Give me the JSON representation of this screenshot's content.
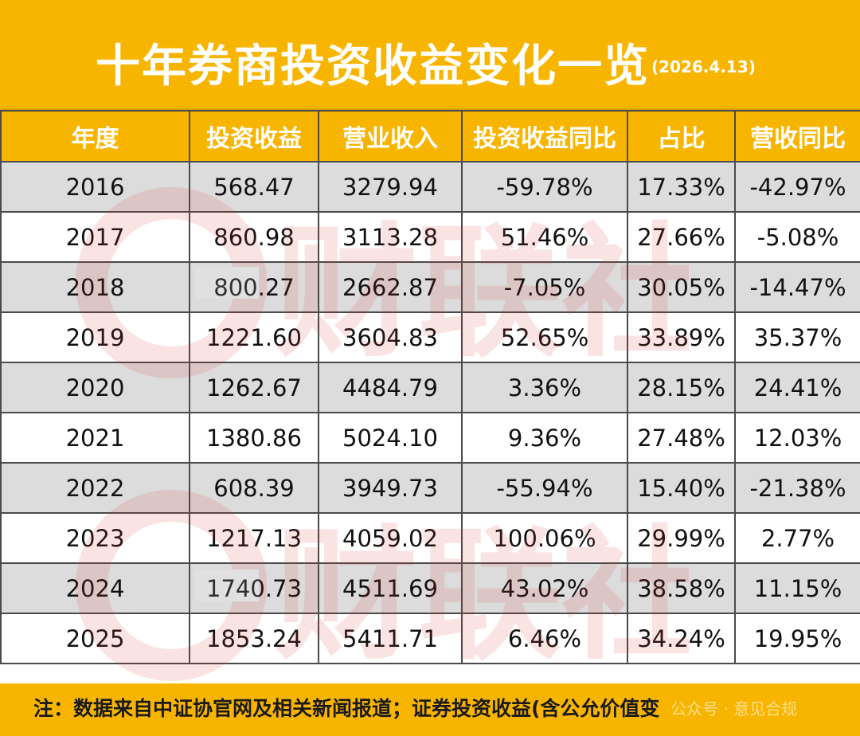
{
  "title": {
    "main": "十年券商投资收益变化一览",
    "date": "(2026.4.13)"
  },
  "table": {
    "headers": [
      "年度",
      "投资收益",
      "营业收入",
      "投资收益同比",
      "占比",
      "营收同比"
    ],
    "rows": [
      [
        "2016",
        "568.47",
        "3279.94",
        "-59.78%",
        "17.33%",
        "-42.97%"
      ],
      [
        "2017",
        "860.98",
        "3113.28",
        "51.46%",
        "27.66%",
        "-5.08%"
      ],
      [
        "2018",
        "800.27",
        "2662.87",
        "-7.05%",
        "30.05%",
        "-14.47%"
      ],
      [
        "2019",
        "1221.60",
        "3604.83",
        "52.65%",
        "33.89%",
        "35.37%"
      ],
      [
        "2020",
        "1262.67",
        "4484.79",
        "3.36%",
        "28.15%",
        "24.41%"
      ],
      [
        "2021",
        "1380.86",
        "5024.10",
        "9.36%",
        "27.48%",
        "12.03%"
      ],
      [
        "2022",
        "608.39",
        "3949.73",
        "-55.94%",
        "15.40%",
        "-21.38%"
      ],
      [
        "2023",
        "1217.13",
        "4059.02",
        "100.06%",
        "29.99%",
        "2.77%"
      ],
      [
        "2024",
        "1740.73",
        "4511.69",
        "43.02%",
        "38.58%",
        "11.15%"
      ],
      [
        "2025",
        "1853.24",
        "5411.71",
        "6.46%",
        "34.24%",
        "19.95%"
      ]
    ]
  },
  "footer": {
    "note": "注：数据来自中证协官网及相关新闻报道；证券投资收益(含公允价值变",
    "watermark": "公众号 · 意见合规"
  },
  "watermark_text": "财联社",
  "colors": {
    "accent": "#f8b500",
    "row_shade": "#dcdcdc",
    "watermark": "#e03030"
  }
}
